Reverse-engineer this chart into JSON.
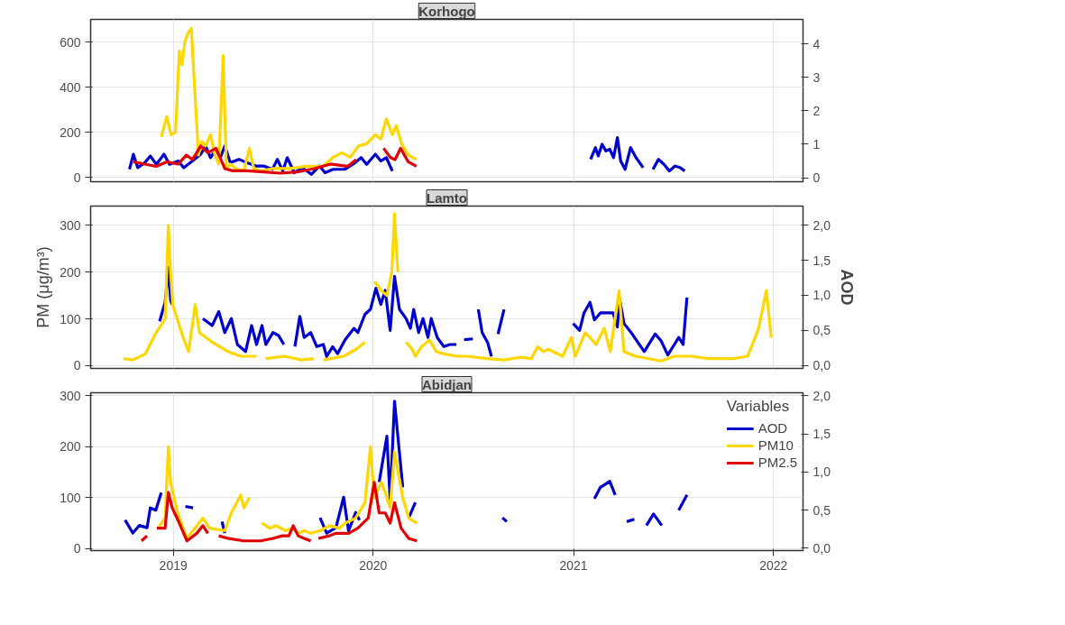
{
  "chart_data": [
    {
      "type": "line",
      "title": "Korhogo",
      "tick_labels": "y",
      "grid": true,
      "xlim": [
        "2018-08-03",
        "2022-02-24"
      ],
      "xticks": [
        "2019",
        "2020",
        "2021",
        "2022"
      ],
      "ylim": [
        -18,
        700
      ],
      "yticks": [
        0,
        200,
        400,
        600
      ],
      "y2lim": [
        -0.12,
        4.73
      ],
      "y2ticks": [
        0,
        1,
        2,
        3,
        4
      ],
      "series": [
        {
          "color": "#0000cd",
          "axis": "y2",
          "x": [
            "2018-10-13",
            "2018-10-20",
            "2018-10-28",
            "2018-11-10",
            "2018-11-20",
            "2018-12-01",
            "2018-12-15",
            "2018-12-25",
            "2019-01-10",
            "2019-01-20",
            "2019-02-05",
            "2019-02-20",
            "2019-03-01",
            "2019-03-10",
            "2019-03-20",
            "2019-03-28",
            "2019-04-05",
            "2019-04-15",
            "2019-05-01",
            "2019-05-15",
            "2019-06-01",
            "2019-06-15",
            "2019-07-01",
            "2019-07-10",
            "2019-07-20",
            "2019-07-28",
            "2019-08-10",
            "2019-08-25",
            "2019-09-10",
            "2019-09-25",
            "2019-10-05",
            "2019-10-20",
            "2019-11-10",
            "2019-11-25",
            "2019-12-10",
            "2019-12-20",
            "2020-01-05",
            "2020-01-15",
            "2020-01-25",
            "2020-02-05",
            null,
            "2021-02-01",
            "2021-02-10",
            "2021-02-15",
            "2021-02-22",
            "2021-03-01",
            "2021-03-08",
            "2021-03-15",
            "2021-03-22",
            "2021-03-28",
            "2021-04-05",
            "2021-04-15",
            "2021-04-25",
            "2021-05-08",
            null,
            "2021-05-26",
            "2021-06-05",
            "2021-06-15",
            "2021-06-25",
            "2021-07-05",
            "2021-07-15",
            "2021-07-23"
          ],
          "values": [
            0.25,
            0.7,
            0.3,
            0.45,
            0.65,
            0.4,
            0.7,
            0.4,
            0.5,
            0.3,
            0.5,
            0.7,
            0.95,
            0.6,
            0.85,
            0.6,
            0.95,
            0.45,
            0.55,
            0.45,
            0.35,
            0.35,
            0.25,
            0.55,
            0.2,
            0.6,
            0.15,
            0.3,
            0.1,
            0.35,
            0.15,
            0.25,
            0.25,
            0.4,
            0.6,
            0.4,
            0.7,
            0.5,
            0.6,
            0.2,
            null,
            0.55,
            0.9,
            0.65,
            1.0,
            0.8,
            0.85,
            0.6,
            1.2,
            0.5,
            0.25,
            0.9,
            0.6,
            0.3,
            null,
            0.25,
            0.55,
            0.4,
            0.2,
            0.35,
            0.3,
            0.2
          ]
        },
        {
          "color": "#ffd700",
          "x": [
            "2018-12-10",
            "2018-12-20",
            "2018-12-28",
            "2019-01-05",
            "2019-01-12",
            "2019-01-17",
            "2019-01-22",
            "2019-01-28",
            "2019-02-03",
            "2019-02-10",
            "2019-02-16",
            "2019-02-22",
            "2019-03-01",
            "2019-03-10",
            "2019-03-18",
            "2019-03-25",
            "2019-04-02",
            "2019-04-08",
            "2019-04-15",
            "2019-04-25",
            "2019-05-10",
            "2019-05-20",
            "2019-05-28",
            "2019-06-10",
            "2019-07-01",
            "2019-08-01",
            "2019-09-01",
            "2019-10-01",
            "2019-10-20",
            "2019-11-05",
            "2019-11-20",
            "2019-12-05",
            "2019-12-20",
            "2020-01-05",
            "2020-01-15",
            "2020-01-25",
            "2020-02-05",
            "2020-02-12",
            "2020-02-22",
            "2020-03-05",
            "2020-03-20"
          ],
          "values": [
            180,
            270,
            190,
            200,
            560,
            500,
            600,
            640,
            660,
            350,
            100,
            160,
            140,
            190,
            100,
            60,
            540,
            40,
            60,
            40,
            30,
            130,
            40,
            30,
            40,
            40,
            50,
            50,
            90,
            110,
            90,
            140,
            150,
            190,
            170,
            260,
            190,
            230,
            150,
            100,
            80
          ]
        },
        {
          "color": "#e00000",
          "x": [
            "2018-10-20",
            "2018-11-10",
            "2018-12-01",
            "2018-12-20",
            "2019-01-10",
            "2019-01-25",
            "2019-02-05",
            "2019-02-20",
            "2019-03-05",
            "2019-03-20",
            "2019-04-05",
            "2019-04-20",
            "2019-05-15",
            "2019-06-15",
            "2019-07-15",
            "2019-08-15",
            "2019-09-15",
            "2019-10-15",
            "2019-11-15",
            "2019-12-01",
            null,
            "2020-01-20",
            "2020-02-01",
            "2020-02-10",
            "2020-02-20",
            "2020-03-05",
            "2020-03-20"
          ],
          "values": [
            70,
            60,
            50,
            70,
            60,
            100,
            80,
            140,
            110,
            130,
            40,
            30,
            30,
            25,
            20,
            25,
            40,
            60,
            50,
            80,
            null,
            130,
            90,
            80,
            130,
            70,
            50
          ]
        }
      ]
    },
    {
      "type": "line",
      "title": "Lamto",
      "tick_labels": "y",
      "grid": true,
      "ylabel": "PM (μg/m³)",
      "y2label": "AOD",
      "xlim": [
        "2018-08-03",
        "2022-02-24"
      ],
      "xticks": [
        "2019",
        "2020",
        "2021",
        "2022"
      ],
      "ylim": [
        -6,
        341
      ],
      "yticks": [
        0,
        100,
        200,
        300
      ],
      "y2lim": [
        -0.04,
        2.27
      ],
      "y2ticks": [
        {
          "value": 0,
          "label": "0,0"
        },
        {
          "value": 0.5,
          "label": "0,5"
        },
        {
          "value": 1,
          "label": "1,0"
        },
        {
          "value": 1.5,
          "label": "1,5"
        },
        {
          "value": 2,
          "label": "2,0"
        }
      ],
      "series": [
        {
          "color": "#0000cd",
          "axis": "y2",
          "x": [
            "2018-12-07",
            "2018-12-17",
            "2018-12-23",
            "2018-12-27",
            "2018-12-30",
            null,
            "2019-02-24",
            "2019-03-13",
            "2019-03-25",
            "2019-04-05",
            "2019-04-17",
            "2019-04-28",
            "2019-05-13",
            "2019-05-24",
            "2019-06-02",
            "2019-06-12",
            "2019-06-19",
            "2019-07-02",
            "2019-07-12",
            "2019-07-22",
            null,
            "2019-08-11",
            "2019-08-20",
            "2019-08-28",
            "2019-09-09",
            "2019-09-20",
            "2019-10-02",
            "2019-10-08",
            "2019-10-19",
            "2019-10-28",
            "2019-11-11",
            "2019-11-27",
            "2019-12-04",
            "2019-12-17",
            "2019-12-27",
            "2020-01-06",
            "2020-01-15",
            "2020-01-23",
            "2020-02-01",
            "2020-02-09",
            "2020-02-18",
            "2020-03-01",
            "2020-03-09",
            "2020-03-15",
            "2020-03-24",
            "2020-04-01",
            "2020-04-10",
            "2020-04-16",
            "2020-04-27",
            "2020-05-09",
            "2020-05-20",
            "2020-06-01",
            null,
            "2020-06-15",
            "2020-07-01",
            null,
            "2020-07-11",
            "2020-07-18",
            "2020-07-28",
            "2020-08-04",
            null,
            "2020-08-16",
            "2020-08-27",
            null,
            "2020-12-31",
            "2021-01-12",
            "2021-01-20",
            "2021-01-31",
            "2021-02-08",
            "2021-02-19",
            "2021-03-03",
            "2021-03-14",
            "2021-03-22",
            "2021-03-26",
            "2021-04-03",
            "2021-04-18",
            "2021-05-10",
            "2021-05-30",
            "2021-06-10",
            "2021-06-22",
            "2021-07-04",
            "2021-07-12",
            "2021-07-20",
            "2021-07-27"
          ],
          "values": [
            0.63,
            0.9,
            1.4,
            0.93,
            0.87,
            null,
            0.67,
            0.57,
            0.77,
            0.47,
            0.67,
            0.3,
            0.2,
            0.57,
            0.3,
            0.57,
            0.3,
            0.47,
            0.43,
            0.3,
            null,
            0.27,
            0.7,
            0.4,
            0.47,
            0.27,
            0.3,
            0.13,
            0.27,
            0.17,
            0.37,
            0.53,
            0.47,
            0.73,
            0.8,
            1.1,
            0.87,
            1.07,
            0.5,
            1.27,
            0.8,
            0.67,
            0.53,
            0.8,
            0.47,
            0.67,
            0.4,
            0.67,
            0.4,
            0.27,
            0.3,
            0.3,
            null,
            0.37,
            0.38,
            null,
            0.8,
            0.47,
            0.33,
            0.13,
            null,
            0.45,
            0.8,
            null,
            0.6,
            0.5,
            0.75,
            0.9,
            0.65,
            0.75,
            0.75,
            0.75,
            0.55,
            0.95,
            0.6,
            0.45,
            0.2,
            0.45,
            0.35,
            0.15,
            0.3,
            0.4,
            0.3,
            0.97
          ]
        },
        {
          "color": "#ffd700",
          "x": [
            "2018-10-02",
            "2018-10-19",
            "2018-11-11",
            "2018-11-28",
            "2018-12-17",
            "2018-12-23",
            "2018-12-27",
            "2018-12-31",
            "2019-01-19",
            "2019-01-29",
            "2019-02-10",
            "2019-02-18",
            "2019-03-13",
            "2019-04-11",
            "2019-05-04",
            "2019-06-02",
            null,
            "2019-06-19",
            "2019-07-23",
            "2019-08-23",
            "2019-09-15",
            null,
            "2019-10-02",
            "2019-11-08",
            "2019-12-01",
            "2019-12-17",
            null,
            "2020-01-03",
            "2020-01-16",
            "2020-01-26",
            "2020-02-04",
            "2020-02-09",
            "2020-02-15",
            null,
            "2020-03-01",
            "2020-03-12",
            "2020-03-18",
            "2020-03-29",
            "2020-04-13",
            "2020-04-25",
            "2020-05-09",
            "2020-06-03",
            "2020-06-21",
            "2020-07-27",
            "2020-08-27",
            "2020-09-26",
            "2020-10-16",
            "2020-10-27",
            "2020-11-07",
            "2020-11-16",
            "2020-12-12",
            "2020-12-28",
            "2021-01-04",
            "2021-01-22",
            "2021-01-31",
            "2021-02-11",
            "2021-02-26",
            "2021-03-09",
            "2021-03-25",
            "2021-04-03",
            "2021-04-24",
            "2021-06-10",
            "2021-07-04",
            "2021-08-04",
            "2021-09-04",
            "2021-10-20",
            "2021-11-15",
            "2021-12-05",
            "2021-12-19",
            "2021-12-28"
          ],
          "values": [
            15,
            12,
            25,
            65,
            100,
            300,
            200,
            130,
            60,
            30,
            130,
            70,
            50,
            30,
            20,
            20,
            null,
            15,
            20,
            12,
            15,
            null,
            12,
            20,
            35,
            50,
            null,
            180,
            160,
            150,
            200,
            325,
            200,
            null,
            50,
            35,
            20,
            40,
            55,
            30,
            25,
            20,
            20,
            15,
            12,
            18,
            15,
            40,
            30,
            35,
            20,
            60,
            20,
            70,
            60,
            45,
            80,
            30,
            160,
            30,
            20,
            10,
            20,
            20,
            15,
            15,
            20,
            80,
            160,
            60
          ]
        }
      ]
    },
    {
      "type": "line",
      "title": "Abidjan",
      "grid": true,
      "legend": "top right",
      "legend_title": "Variables",
      "xlim": [
        "2018-08-03",
        "2022-02-24"
      ],
      "xticks": [
        "2019",
        "2020",
        "2021",
        "2022"
      ],
      "ylim": [
        -4,
        306
      ],
      "yticks": [
        0,
        100,
        200,
        300
      ],
      "y2lim": [
        -0.03,
        2.04
      ],
      "y2ticks": [
        {
          "value": 0,
          "label": "0,0"
        },
        {
          "value": 0.5,
          "label": "0,5"
        },
        {
          "value": 1,
          "label": "1,0"
        },
        {
          "value": 1.5,
          "label": "1,5"
        },
        {
          "value": 2,
          "label": "2,0"
        }
      ],
      "series": [
        {
          "name": "AOD",
          "color": "#0000cd",
          "axis": "y2",
          "x": [
            "2018-10-05",
            "2018-10-19",
            "2018-10-31",
            "2018-11-14",
            "2018-11-20",
            "2018-11-30",
            "2018-12-10",
            null,
            "2019-01-23",
            "2019-02-06",
            null,
            "2019-03-31",
            "2019-04-05",
            null,
            "2019-09-26",
            "2019-10-08",
            "2019-10-25",
            "2019-11-08",
            "2019-11-17",
            "2019-11-30",
            "2019-12-07",
            null,
            "2020-01-12",
            "2020-01-26",
            "2020-02-01",
            "2020-02-09",
            "2020-02-24",
            null,
            "2020-03-06",
            "2020-03-18",
            null,
            "2020-08-24",
            "2020-09-01",
            null,
            "2021-02-08",
            "2021-02-19",
            "2021-03-02",
            "2021-03-08",
            "2021-03-18",
            null,
            "2021-04-08",
            "2021-04-22",
            null,
            "2021-05-14",
            "2021-05-27",
            "2021-06-11",
            null,
            "2021-07-12",
            "2021-07-27"
          ],
          "values": [
            0.37,
            0.2,
            0.3,
            0.27,
            0.53,
            0.5,
            0.73,
            null,
            0.55,
            0.53,
            null,
            0.35,
            0.2,
            null,
            0.4,
            0.2,
            0.27,
            0.67,
            0.23,
            0.47,
            0.37,
            null,
            0.87,
            1.47,
            0.63,
            1.93,
            0.8,
            null,
            0.4,
            0.6,
            null,
            0.4,
            0.35,
            null,
            0.65,
            0.8,
            0.85,
            0.88,
            0.7,
            null,
            0.35,
            0.38,
            null,
            0.3,
            0.45,
            0.3,
            null,
            0.5,
            0.7
          ]
        },
        {
          "name": "PM10",
          "color": "#ffd700",
          "x": [
            "2018-12-04",
            "2018-12-17",
            "2018-12-23",
            "2018-12-27",
            "2019-01-09",
            "2019-01-26",
            "2019-02-24",
            "2019-03-08",
            "2019-04-05",
            "2019-04-17",
            "2019-05-04",
            "2019-05-10",
            "2019-05-20",
            null,
            "2019-06-12",
            "2019-06-26",
            "2019-07-08",
            "2019-07-25",
            "2019-08-05",
            "2019-08-17",
            "2019-08-28",
            "2019-09-09",
            "2019-09-26",
            "2019-10-13",
            "2019-10-31",
            "2019-11-11",
            "2019-11-30",
            "2019-12-17",
            "2019-12-27",
            "2020-01-03",
            "2020-01-16",
            "2020-01-23",
            "2020-02-01",
            "2020-02-09",
            "2020-02-24",
            "2020-03-06",
            "2020-03-21"
          ],
          "values": [
            40,
            60,
            200,
            130,
            70,
            20,
            60,
            40,
            35,
            70,
            105,
            80,
            100,
            null,
            50,
            40,
            45,
            35,
            40,
            30,
            35,
            30,
            35,
            45,
            40,
            50,
            60,
            90,
            200,
            100,
            130,
            110,
            80,
            190,
            100,
            60,
            50
          ]
        },
        {
          "name": "PM2.5",
          "color": "#e00000",
          "x": [
            "2018-11-04",
            "2018-11-14",
            null,
            "2018-12-02",
            "2018-12-17",
            "2018-12-23",
            "2018-12-30",
            "2019-01-12",
            "2019-01-26",
            "2019-02-13",
            "2019-02-24",
            "2019-03-05",
            null,
            "2019-03-25",
            "2019-04-11",
            "2019-05-10",
            "2019-06-09",
            "2019-07-02",
            "2019-07-19",
            "2019-07-31",
            "2019-08-08",
            "2019-08-17",
            "2019-08-28",
            "2019-09-09",
            null,
            "2019-09-23",
            "2019-10-13",
            "2019-10-25",
            "2019-11-17",
            "2019-12-04",
            "2019-12-23",
            "2020-01-03",
            "2020-01-12",
            "2020-01-23",
            "2020-02-01",
            "2020-02-09",
            "2020-02-21",
            "2020-03-06",
            "2020-03-21"
          ],
          "values": [
            15,
            25,
            null,
            40,
            40,
            110,
            80,
            50,
            15,
            30,
            45,
            30,
            null,
            25,
            20,
            15,
            15,
            20,
            25,
            25,
            45,
            25,
            20,
            15,
            null,
            20,
            25,
            30,
            30,
            40,
            60,
            130,
            70,
            70,
            50,
            90,
            40,
            20,
            15
          ]
        }
      ]
    }
  ]
}
